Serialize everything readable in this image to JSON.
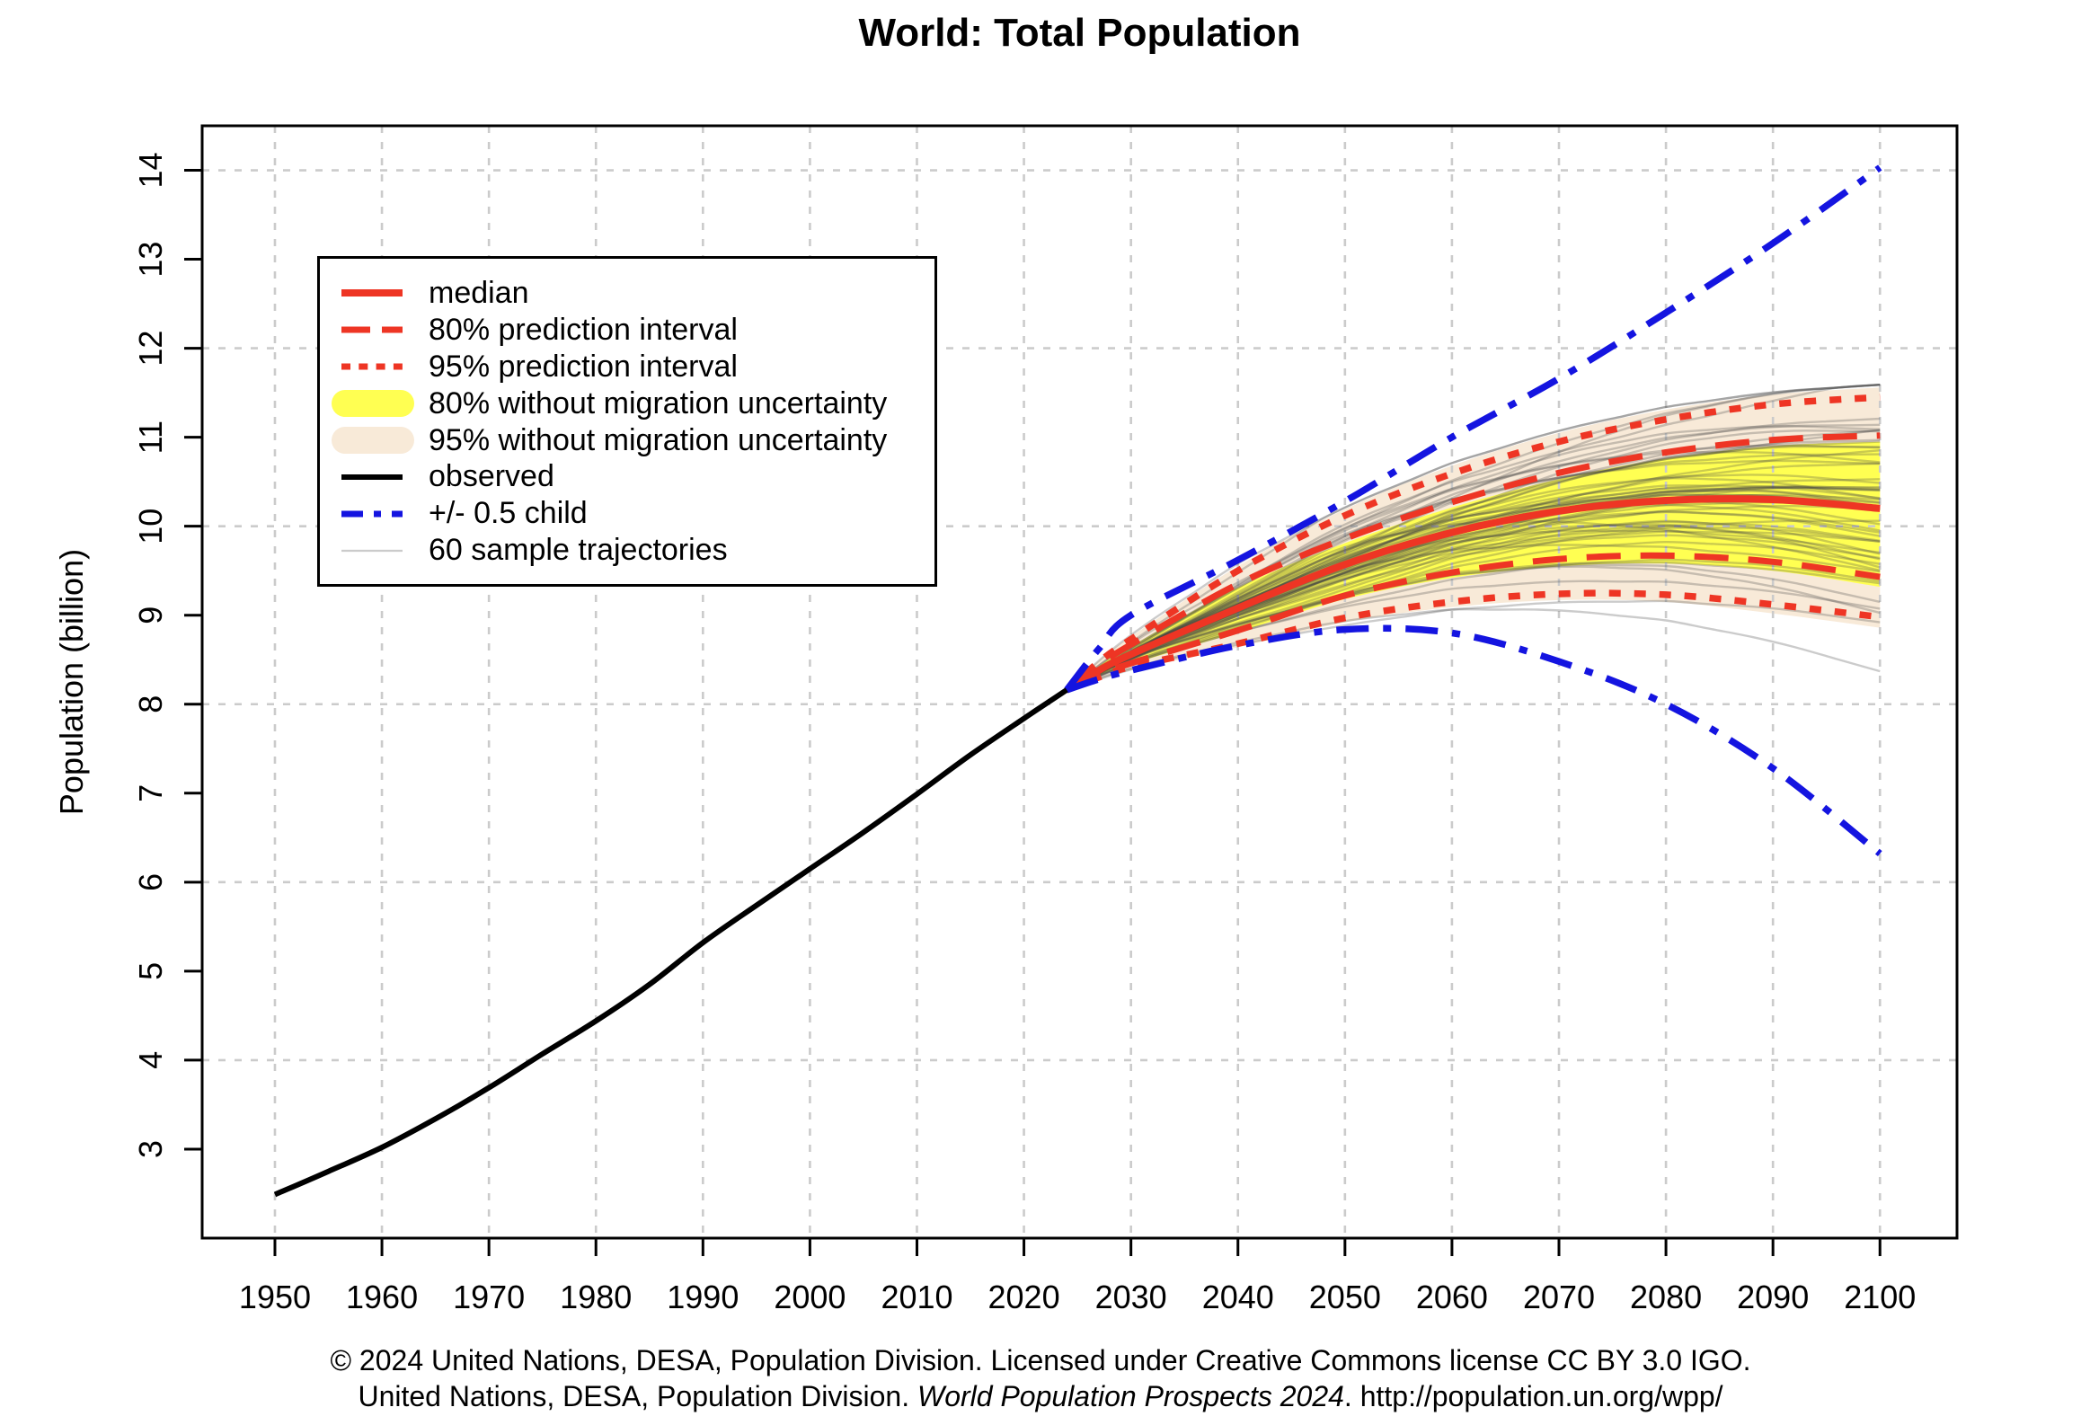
{
  "title": "World: Total Population",
  "y_axis_title": "Population (billion)",
  "footer": {
    "line1": "© 2024 United Nations, DESA, Population Division. Licensed under Creative Commons license CC BY 3.0 IGO.",
    "line2_prefix": "United Nations, DESA, Population Division. ",
    "line2_italic": "World Population Prospects 2024",
    "line2_suffix": ". http://population.un.org/wpp/"
  },
  "legend": {
    "items": [
      {
        "label": "median",
        "sample": "solid-red-line"
      },
      {
        "label": "80% prediction interval",
        "sample": "dashed-red-line"
      },
      {
        "label": "95% prediction interval",
        "sample": "dotted-red-line"
      },
      {
        "label": "80% without migration uncertainty",
        "sample": "yellow-band"
      },
      {
        "label": "95% without migration uncertainty",
        "sample": "wheat-band"
      },
      {
        "label": "observed",
        "sample": "solid-black-line"
      },
      {
        "label": "+/- 0.5 child",
        "sample": "blue-dashdot-line"
      },
      {
        "label": "60 sample trajectories",
        "sample": "thin-gray-line"
      }
    ]
  },
  "colors": {
    "red": "#ee3524",
    "blue": "#1414e0",
    "yellow": "#ffff52",
    "wheat": "#f8ead8",
    "black": "#000000",
    "gray_trajectory": "rgba(70,70,70,0.28)",
    "gridline": "#cbcbcb"
  },
  "chart_data": {
    "type": "line",
    "title": "World: Total Population",
    "ylabel": "Population (billion)",
    "xlim": [
      1943.2,
      2107.2
    ],
    "ylim": [
      2.0,
      14.5
    ],
    "x_ticks": [
      1950,
      1960,
      1970,
      1980,
      1990,
      2000,
      2010,
      2020,
      2030,
      2040,
      2050,
      2060,
      2070,
      2080,
      2090,
      2100
    ],
    "y_ticks": [
      3,
      4,
      5,
      6,
      7,
      8,
      9,
      10,
      11,
      12,
      13,
      14
    ],
    "grid_x": [
      1950,
      1960,
      1970,
      1980,
      1990,
      2000,
      2010,
      2020,
      2030,
      2040,
      2050,
      2060,
      2070,
      2080,
      2090,
      2100
    ],
    "grid_y": [
      4,
      6,
      8,
      10,
      12,
      14
    ],
    "observed": {
      "years": [
        1950,
        1955,
        1960,
        1965,
        1970,
        1975,
        1980,
        1985,
        1990,
        1995,
        2000,
        2005,
        2010,
        2015,
        2020,
        2024
      ],
      "values": [
        2.49,
        2.75,
        3.02,
        3.34,
        3.69,
        4.07,
        4.44,
        4.85,
        5.32,
        5.74,
        6.15,
        6.56,
        6.99,
        7.43,
        7.84,
        8.16
      ]
    },
    "projection_years": [
      2024,
      2030,
      2040,
      2050,
      2060,
      2070,
      2080,
      2090,
      2100
    ],
    "series": [
      {
        "name": "median",
        "values": [
          8.16,
          8.56,
          9.08,
          9.57,
          9.93,
          10.17,
          10.29,
          10.3,
          10.2
        ]
      },
      {
        "name": "80%_prediction_upper",
        "values": [
          8.16,
          8.67,
          9.35,
          9.86,
          10.27,
          10.6,
          10.83,
          10.97,
          11.02
        ]
      },
      {
        "name": "80%_prediction_lower",
        "values": [
          8.16,
          8.46,
          8.83,
          9.22,
          9.48,
          9.63,
          9.67,
          9.6,
          9.43
        ]
      },
      {
        "name": "95%_prediction_upper",
        "values": [
          8.16,
          8.73,
          9.5,
          10.12,
          10.59,
          10.95,
          11.2,
          11.37,
          11.45
        ]
      },
      {
        "name": "95%_prediction_lower",
        "values": [
          8.16,
          8.42,
          8.68,
          8.97,
          9.15,
          9.24,
          9.23,
          9.12,
          8.98
        ]
      },
      {
        "name": "80%_without_migration_upper",
        "values": [
          8.16,
          8.65,
          9.31,
          9.81,
          10.21,
          10.53,
          10.76,
          10.9,
          10.95
        ]
      },
      {
        "name": "80%_without_migration_lower",
        "values": [
          8.16,
          8.45,
          8.81,
          9.18,
          9.42,
          9.55,
          9.58,
          9.5,
          9.32
        ]
      },
      {
        "name": "95%_without_migration_upper",
        "values": [
          8.16,
          8.76,
          9.55,
          10.19,
          10.68,
          11.05,
          11.31,
          11.48,
          11.56
        ]
      },
      {
        "name": "95%_without_migration_lower",
        "values": [
          8.16,
          8.38,
          8.64,
          8.92,
          9.09,
          9.17,
          9.15,
          9.02,
          8.86
        ]
      },
      {
        "name": "plus_half_child",
        "values": [
          8.16,
          9.0,
          9.62,
          10.28,
          11.0,
          11.66,
          12.4,
          13.18,
          14.03
        ]
      },
      {
        "name": "minus_half_child",
        "values": [
          8.16,
          8.38,
          8.66,
          8.84,
          8.8,
          8.48,
          8.0,
          7.28,
          6.32
        ]
      }
    ],
    "sample_trajectories_count": 60
  }
}
